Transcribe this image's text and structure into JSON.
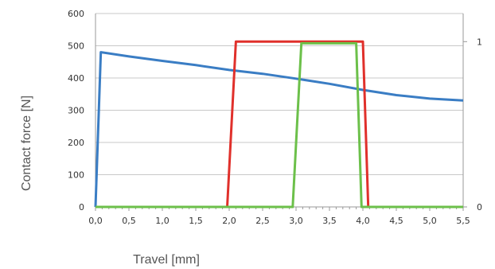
{
  "chart_data": {
    "type": "line",
    "xlabel": "Travel [mm]",
    "ylabel": "Contact force [N]",
    "xlim": [
      0,
      5.5
    ],
    "ylim": [
      0,
      600
    ],
    "y2lim": [
      0,
      1.17
    ],
    "grid": true,
    "x_ticks": [
      "0,0",
      "0,5",
      "1,0",
      "1,5",
      "2,0",
      "2,5",
      "3,0",
      "3,5",
      "4,0",
      "4,5",
      "5,0",
      "5,5"
    ],
    "y_ticks": [
      "0",
      "100",
      "200",
      "300",
      "400",
      "500",
      "600"
    ],
    "y2_ticks": [
      "0",
      "1"
    ],
    "series": [
      {
        "axis": "left",
        "color": "#3a7dc4",
        "x": [
          0,
          0.08,
          0.5,
          1.0,
          1.5,
          2.0,
          2.5,
          3.0,
          3.5,
          4.0,
          4.5,
          5.0,
          5.5
        ],
        "y": [
          0,
          480,
          467,
          453,
          440,
          425,
          413,
          398,
          382,
          363,
          347,
          336,
          330
        ]
      },
      {
        "axis": "right",
        "color": "#e0302b",
        "x": [
          0,
          1.97,
          2.1,
          4.0,
          4.08,
          5.5
        ],
        "y": [
          0,
          0,
          1,
          1,
          0,
          0
        ]
      },
      {
        "axis": "right",
        "color": "#6cc04a",
        "x": [
          0,
          2.95,
          3.08,
          3.9,
          3.98,
          5.5
        ],
        "y": [
          0,
          0,
          0.99,
          0.99,
          0,
          0
        ]
      }
    ]
  }
}
